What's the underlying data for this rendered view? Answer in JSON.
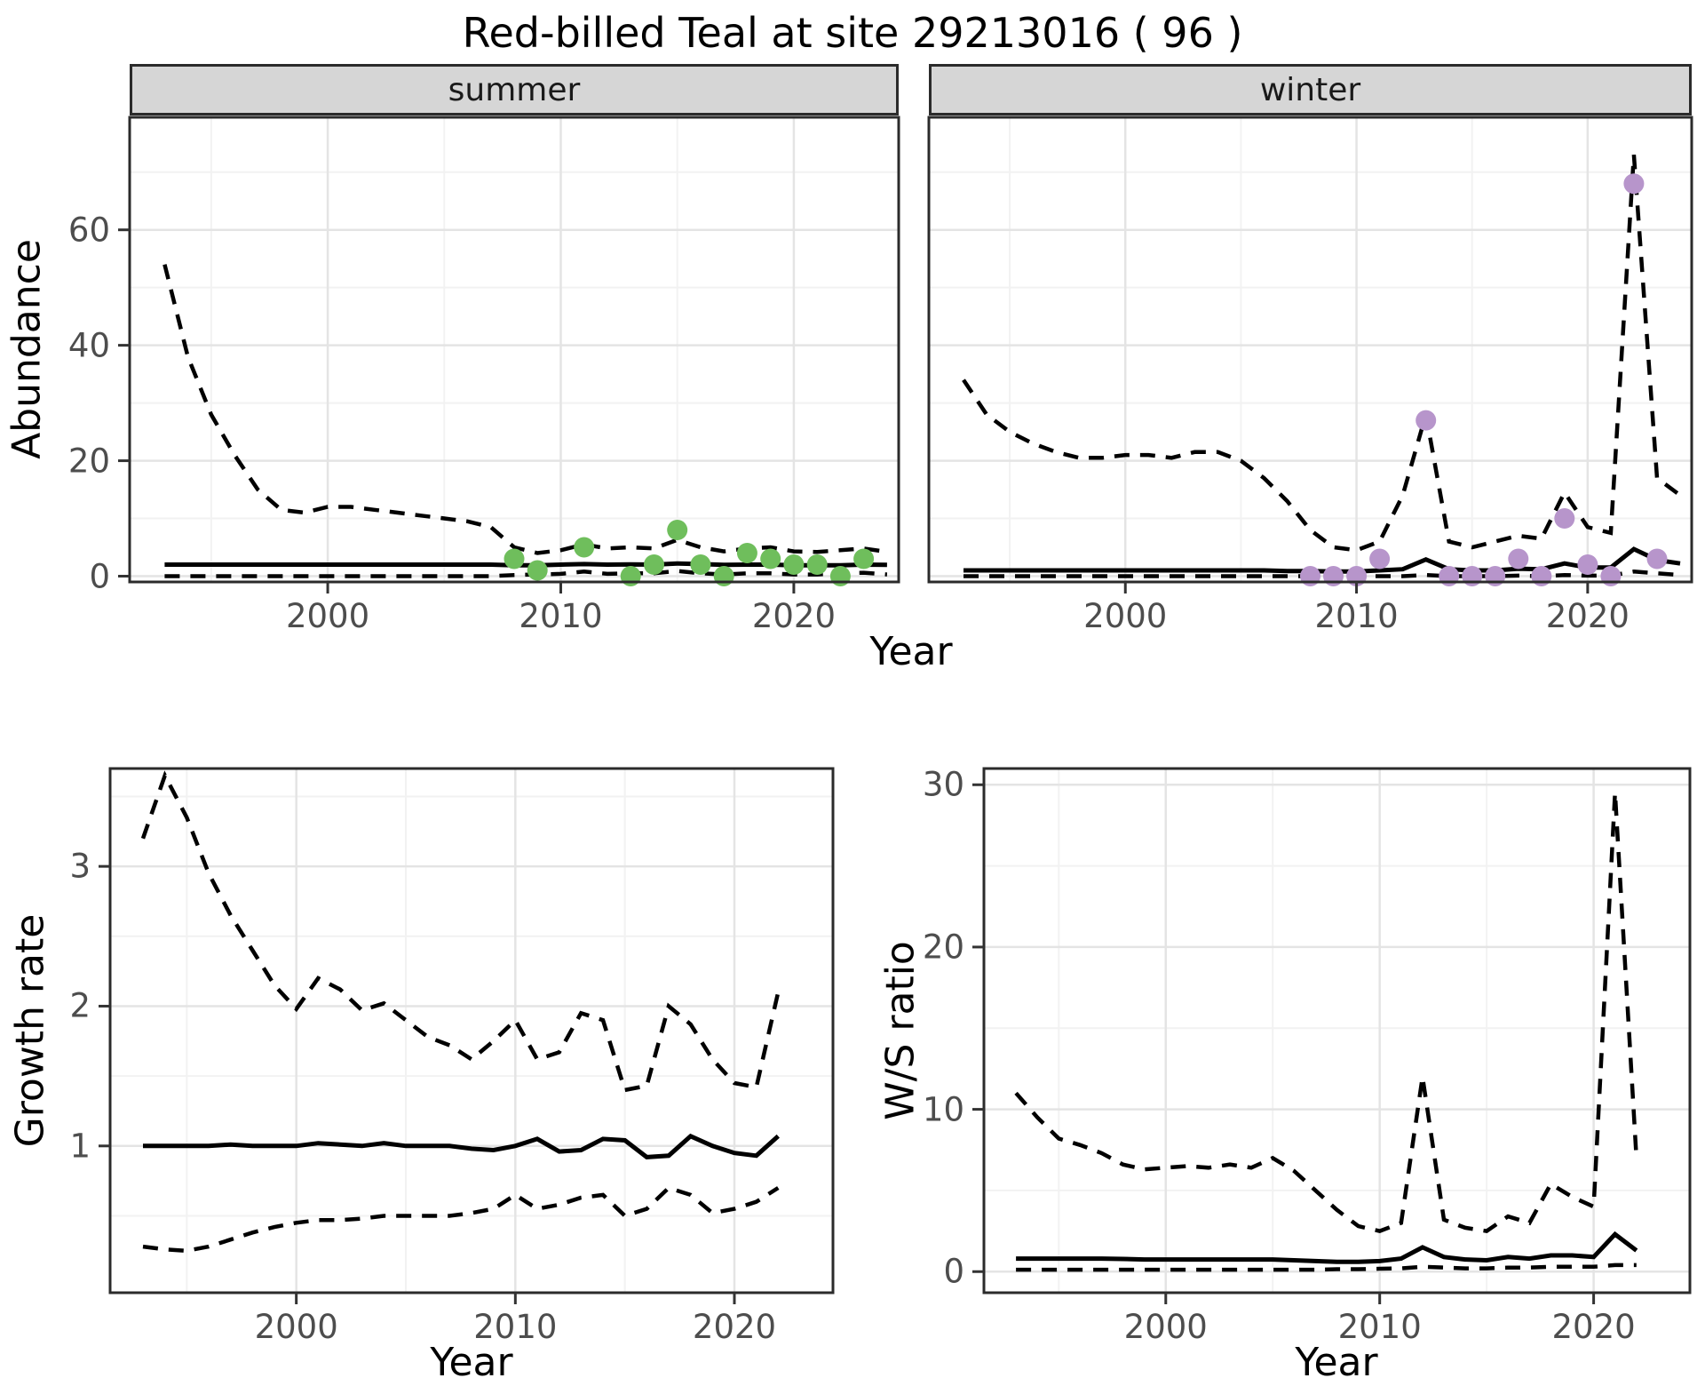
{
  "title": "Red-billed Teal at site 29213016 ( 96 )",
  "facets": {
    "summer": "summer",
    "winter": "winter"
  },
  "axes": {
    "abundance": "Abundance",
    "growth_rate": "Growth rate",
    "ws_ratio": "W/S ratio",
    "year": "Year"
  },
  "colors": {
    "summer_point": "#6FBE5C",
    "winter_point": "#B795CB",
    "line": "#000000",
    "strip_fill": "#D6D6D6",
    "panel_border": "#2B2B2B",
    "grid_major": "#E4E4E4",
    "grid_minor": "#F2F2F2",
    "tick_label": "#4D4D4D"
  },
  "chart_data": [
    {
      "id": "abundance_summer",
      "type": "line",
      "facet": "summer",
      "title": "",
      "xlabel": "Year",
      "ylabel": "Abundance",
      "x_domain": [
        1991.5,
        2024.5
      ],
      "y_domain": [
        -1,
        79.5
      ],
      "x_ticks": [
        2000,
        2010,
        2020
      ],
      "x_minor": [
        1995,
        2005,
        2015
      ],
      "y_ticks": [
        0,
        20,
        40,
        60
      ],
      "y_minor": [
        10,
        30,
        50,
        70
      ],
      "show_y_labels": true,
      "years": [
        1993,
        1994,
        1995,
        1996,
        1997,
        1998,
        1999,
        2000,
        2001,
        2002,
        2003,
        2004,
        2005,
        2006,
        2007,
        2008,
        2009,
        2010,
        2011,
        2012,
        2013,
        2014,
        2015,
        2016,
        2017,
        2018,
        2019,
        2020,
        2021,
        2022,
        2023,
        2024
      ],
      "series": [
        {
          "name": "ci_upper",
          "style": "dashed",
          "values": [
            54,
            38,
            28,
            21,
            15,
            11.5,
            11,
            12,
            12,
            11.5,
            11,
            10.5,
            10,
            9.5,
            8.5,
            5,
            4,
            4.5,
            5.5,
            4.8,
            5,
            4.8,
            6.3,
            5,
            4.3,
            4.8,
            5,
            4.3,
            4.2,
            4.5,
            4.8,
            4.2
          ]
        },
        {
          "name": "median",
          "style": "solid",
          "values": [
            2,
            2,
            2,
            2,
            2,
            2,
            2,
            2,
            2,
            2,
            2,
            2,
            2,
            2,
            2,
            1.9,
            1.9,
            2,
            2.1,
            2,
            2.05,
            2,
            2.2,
            2.1,
            1.95,
            2,
            2,
            1.9,
            1.9,
            1.9,
            2,
            1.95
          ]
        },
        {
          "name": "ci_lower",
          "style": "dashed",
          "values": [
            0,
            0,
            0,
            0,
            0,
            0,
            0,
            0,
            0,
            0,
            0,
            0,
            0,
            0,
            0,
            0.2,
            0.3,
            0.4,
            0.8,
            0.4,
            0.5,
            0.5,
            0.9,
            0.5,
            0.3,
            0.5,
            0.5,
            0.3,
            0.3,
            0.5,
            0.6,
            0.3
          ]
        }
      ],
      "points": {
        "name": "observed_summer_counts",
        "color_key": "summer_point",
        "years": [
          2008,
          2009,
          2011,
          2013,
          2014,
          2015,
          2016,
          2017,
          2018,
          2019,
          2020,
          2021,
          2022,
          2023
        ],
        "values": [
          3,
          1,
          5,
          0,
          2,
          8,
          2,
          0,
          4,
          3,
          2,
          2,
          0,
          3
        ]
      }
    },
    {
      "id": "abundance_winter",
      "type": "line",
      "facet": "winter",
      "title": "",
      "xlabel": "Year",
      "ylabel": "Abundance",
      "x_domain": [
        1991.5,
        2024.5
      ],
      "y_domain": [
        -1,
        79.5
      ],
      "x_ticks": [
        2000,
        2010,
        2020
      ],
      "x_minor": [
        1995,
        2005,
        2015
      ],
      "y_ticks": [
        0,
        20,
        40,
        60
      ],
      "y_minor": [
        10,
        30,
        50,
        70
      ],
      "show_y_labels": false,
      "years": [
        1993,
        1994,
        1995,
        1996,
        1997,
        1998,
        1999,
        2000,
        2001,
        2002,
        2003,
        2004,
        2005,
        2006,
        2007,
        2008,
        2009,
        2010,
        2011,
        2012,
        2013,
        2014,
        2015,
        2016,
        2017,
        2018,
        2019,
        2020,
        2021,
        2022,
        2023,
        2024
      ],
      "series": [
        {
          "name": "ci_upper",
          "style": "dashed",
          "values": [
            34,
            28,
            25,
            23,
            21.5,
            20.5,
            20.5,
            21,
            21,
            20.5,
            21.5,
            21.5,
            20,
            17,
            13,
            8,
            5,
            4.5,
            6,
            14,
            28,
            6,
            5,
            6,
            7,
            6.5,
            14.5,
            8.5,
            7.5,
            73,
            17,
            14
          ]
        },
        {
          "name": "median",
          "style": "solid",
          "values": [
            1,
            1,
            1,
            1,
            1,
            1,
            1,
            1,
            1,
            1,
            1,
            1,
            1,
            1,
            0.9,
            0.9,
            0.8,
            0.8,
            1,
            1.2,
            2.9,
            1.2,
            1,
            1,
            1.3,
            1.2,
            2.2,
            1.5,
            1.5,
            4.7,
            2.8,
            2.2
          ]
        },
        {
          "name": "ci_lower",
          "style": "dashed",
          "values": [
            0,
            0,
            0,
            0,
            0,
            0,
            0,
            0,
            0,
            0,
            0,
            0,
            0,
            0,
            0,
            0,
            0,
            0,
            0,
            0,
            0.2,
            0,
            0,
            0,
            0.1,
            0,
            0.2,
            0.1,
            0.1,
            0.8,
            0.5,
            0.2
          ]
        }
      ],
      "points": {
        "name": "observed_winter_counts",
        "color_key": "winter_point",
        "years": [
          2008,
          2009,
          2010,
          2011,
          2013,
          2014,
          2015,
          2016,
          2017,
          2018,
          2019,
          2020,
          2021,
          2022,
          2023
        ],
        "values": [
          0,
          0,
          0,
          3,
          27,
          0,
          0,
          0,
          3,
          0,
          10,
          2,
          0,
          68,
          3
        ]
      }
    },
    {
      "id": "growth_rate",
      "type": "line",
      "facet": "",
      "title": "",
      "xlabel": "Year",
      "ylabel": "Growth rate",
      "x_domain": [
        1991.5,
        2024.5
      ],
      "y_domain": [
        -0.05,
        3.7
      ],
      "x_ticks": [
        2000,
        2010,
        2020
      ],
      "x_minor": [
        1995,
        2005,
        2015
      ],
      "y_ticks": [
        1,
        2,
        3
      ],
      "y_minor": [
        0.5,
        1.5,
        2.5,
        3.5
      ],
      "show_y_labels": true,
      "years": [
        1993,
        1994,
        1995,
        1996,
        1997,
        1998,
        1999,
        2000,
        2001,
        2002,
        2003,
        2004,
        2005,
        2006,
        2007,
        2008,
        2009,
        2010,
        2011,
        2012,
        2013,
        2014,
        2015,
        2016,
        2017,
        2018,
        2019,
        2020,
        2021,
        2022
      ],
      "series": [
        {
          "name": "ci_upper",
          "style": "dashed",
          "values": [
            3.2,
            3.65,
            3.35,
            2.95,
            2.65,
            2.4,
            2.15,
            1.98,
            2.2,
            2.12,
            1.97,
            2.02,
            1.9,
            1.78,
            1.72,
            1.62,
            1.75,
            1.9,
            1.62,
            1.67,
            1.95,
            1.9,
            1.4,
            1.43,
            2.0,
            1.87,
            1.62,
            1.45,
            1.42,
            2.1
          ]
        },
        {
          "name": "median",
          "style": "solid",
          "values": [
            1.0,
            1.0,
            1.0,
            1.0,
            1.01,
            1.0,
            1.0,
            1.0,
            1.02,
            1.01,
            1.0,
            1.02,
            1.0,
            1.0,
            1.0,
            0.98,
            0.97,
            1.0,
            1.05,
            0.96,
            0.97,
            1.05,
            1.04,
            0.92,
            0.93,
            1.07,
            1.0,
            0.95,
            0.93,
            1.07
          ]
        },
        {
          "name": "ci_lower",
          "style": "dashed",
          "values": [
            0.28,
            0.26,
            0.25,
            0.28,
            0.33,
            0.38,
            0.42,
            0.45,
            0.47,
            0.47,
            0.48,
            0.5,
            0.5,
            0.5,
            0.5,
            0.52,
            0.55,
            0.65,
            0.55,
            0.58,
            0.63,
            0.65,
            0.5,
            0.55,
            0.7,
            0.65,
            0.52,
            0.55,
            0.6,
            0.7
          ]
        }
      ],
      "points": null
    },
    {
      "id": "ws_ratio",
      "type": "line",
      "facet": "",
      "title": "",
      "xlabel": "Year",
      "ylabel": "W/S ratio",
      "x_domain": [
        1991.5,
        2024.5
      ],
      "y_domain": [
        -1.3,
        31
      ],
      "x_ticks": [
        2000,
        2010,
        2020
      ],
      "x_minor": [
        1995,
        2005,
        2015
      ],
      "y_ticks": [
        0,
        10,
        20,
        30
      ],
      "y_minor": [
        5,
        15,
        25
      ],
      "show_y_labels": true,
      "years": [
        1993,
        1994,
        1995,
        1996,
        1997,
        1998,
        1999,
        2000,
        2001,
        2002,
        2003,
        2004,
        2005,
        2006,
        2007,
        2008,
        2009,
        2010,
        2011,
        2012,
        2013,
        2014,
        2015,
        2016,
        2017,
        2018,
        2019,
        2020,
        2021,
        2022
      ],
      "series": [
        {
          "name": "ci_upper",
          "style": "dashed",
          "values": [
            11,
            9.5,
            8.2,
            7.8,
            7.3,
            6.6,
            6.3,
            6.4,
            6.5,
            6.4,
            6.6,
            6.4,
            7.0,
            6.2,
            5.0,
            3.8,
            2.8,
            2.5,
            3.0,
            12,
            3.2,
            2.7,
            2.5,
            3.4,
            3.0,
            5.4,
            4.6,
            4.0,
            29.5,
            7.0
          ]
        },
        {
          "name": "median",
          "style": "solid",
          "values": [
            0.8,
            0.8,
            0.8,
            0.8,
            0.8,
            0.78,
            0.75,
            0.75,
            0.75,
            0.75,
            0.75,
            0.75,
            0.75,
            0.7,
            0.65,
            0.6,
            0.6,
            0.65,
            0.8,
            1.5,
            0.9,
            0.75,
            0.7,
            0.9,
            0.8,
            1.0,
            1.0,
            0.9,
            2.3,
            1.3
          ]
        },
        {
          "name": "ci_lower",
          "style": "dashed",
          "values": [
            0.12,
            0.12,
            0.12,
            0.12,
            0.12,
            0.12,
            0.12,
            0.12,
            0.12,
            0.12,
            0.12,
            0.12,
            0.12,
            0.12,
            0.12,
            0.15,
            0.15,
            0.18,
            0.2,
            0.3,
            0.25,
            0.2,
            0.2,
            0.25,
            0.25,
            0.3,
            0.3,
            0.3,
            0.4,
            0.4
          ]
        }
      ],
      "points": null
    }
  ]
}
